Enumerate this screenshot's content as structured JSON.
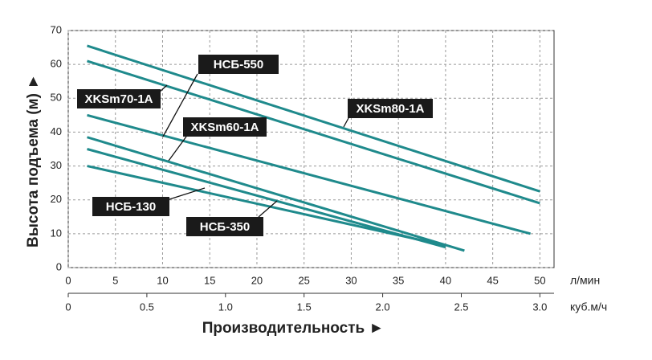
{
  "chart_data": {
    "type": "line",
    "ylabel": "Высота подъема (м) ►",
    "xlabel": "Производительность ►",
    "xunit": "л/мин",
    "x2unit": "куб.м/ч",
    "xlim": [
      0,
      51.5
    ],
    "xticks": [
      0,
      5,
      10,
      15,
      20,
      25,
      30,
      35,
      40,
      45,
      50
    ],
    "x2lim": [
      0,
      3.09
    ],
    "x2ticks": [
      0,
      0.5,
      {
        "value": 1,
        "label": "1.0"
      },
      1.5,
      {
        "value": 2,
        "label": "2.0"
      },
      2.5,
      {
        "value": 3,
        "label": "3.0"
      }
    ],
    "ylim": [
      0,
      70
    ],
    "yticks": [
      0,
      10,
      20,
      30,
      40,
      50,
      60,
      70
    ],
    "grid": true,
    "series": [
      {
        "name": "XKSm80-1A",
        "color": "#1f8a8c",
        "x": [
          2,
          50
        ],
        "values": [
          65.5,
          22.5
        ]
      },
      {
        "name": "XKSm70-1A",
        "color": "#1f8a8c",
        "x": [
          2,
          50
        ],
        "values": [
          61,
          19
        ]
      },
      {
        "name": "НСБ-550",
        "color": "#1f8a8c",
        "x": [
          2,
          49
        ],
        "values": [
          45,
          10
        ]
      },
      {
        "name": "XKSm60-1A",
        "color": "#1f8a8c",
        "x": [
          2,
          42
        ],
        "values": [
          38.5,
          5
        ]
      },
      {
        "name": "НСБ-350",
        "color": "#1f8a8c",
        "x": [
          2,
          40
        ],
        "values": [
          35,
          6
        ]
      },
      {
        "name": "НСБ-130",
        "color": "#1f8a8c",
        "x": [
          2,
          40
        ],
        "values": [
          30,
          6.5
        ]
      }
    ]
  }
}
